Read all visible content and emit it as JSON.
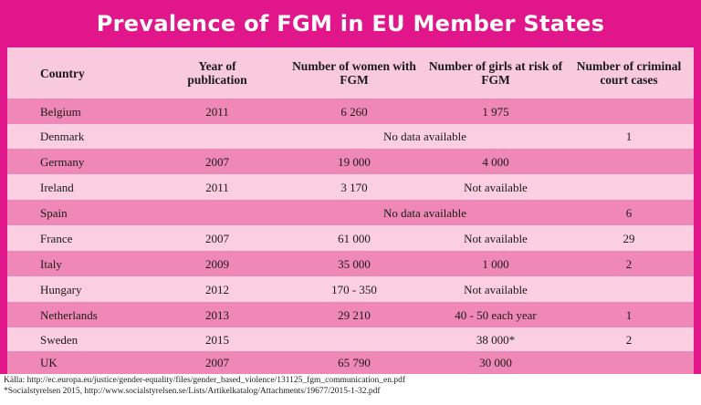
{
  "title": "Prevalence of FGM in EU Member States",
  "headers": {
    "country": "Country",
    "year": "Year of publication",
    "women": "Number of women with FGM",
    "girls": "Number of girls at risk of FGM",
    "cases": "Number of criminal court cases"
  },
  "rows": [
    {
      "country": "Belgium",
      "year": "2011",
      "women": "6 260",
      "girls": "1 975",
      "cases": ""
    },
    {
      "country": "Denmark",
      "year": "",
      "span": "No data available",
      "cases": "1"
    },
    {
      "country": "Germany",
      "year": "2007",
      "women": "19 000",
      "girls": "4 000",
      "cases": ""
    },
    {
      "country": "Ireland",
      "year": "2011",
      "women": "3 170",
      "girls": "Not available",
      "cases": ""
    },
    {
      "country": "Spain",
      "year": "",
      "span": "No data available",
      "cases": "6"
    },
    {
      "country": "France",
      "year": "2007",
      "women": "61 000",
      "girls": "Not available",
      "cases": "29"
    },
    {
      "country": "Italy",
      "year": "2009",
      "women": "35 000",
      "girls": "1 000",
      "cases": "2"
    },
    {
      "country": "Hungary",
      "year": "2012",
      "women": "170 - 350",
      "girls": "Not available",
      "cases": ""
    },
    {
      "country": "Netherlands",
      "year": "2013",
      "women": "29 210",
      "girls": "40 - 50 each year",
      "cases": "1"
    },
    {
      "country": "Sweden",
      "year": "2015",
      "women": "",
      "girls": "38 000*",
      "cases": "2"
    },
    {
      "country": "UK",
      "year": "2007",
      "women": "65 790",
      "girls": "30 000",
      "cases": ""
    }
  ],
  "footer": {
    "source": "Källa: http://ec.europa.eu/justice/gender-equality/files/gender_based_violence/131125_fgm_communication_en.pdf",
    "note": "*Socialstyrelsen 2015, http://www.socialstyrelsen.se/Lists/Artikelkatalog/Attachments/19677/2015-1-32.pdf"
  },
  "colors": {
    "frame": "#e0168a",
    "row_dark": "#f088b7",
    "row_light": "#fbcfe1",
    "header_bg": "#f9c9de"
  }
}
